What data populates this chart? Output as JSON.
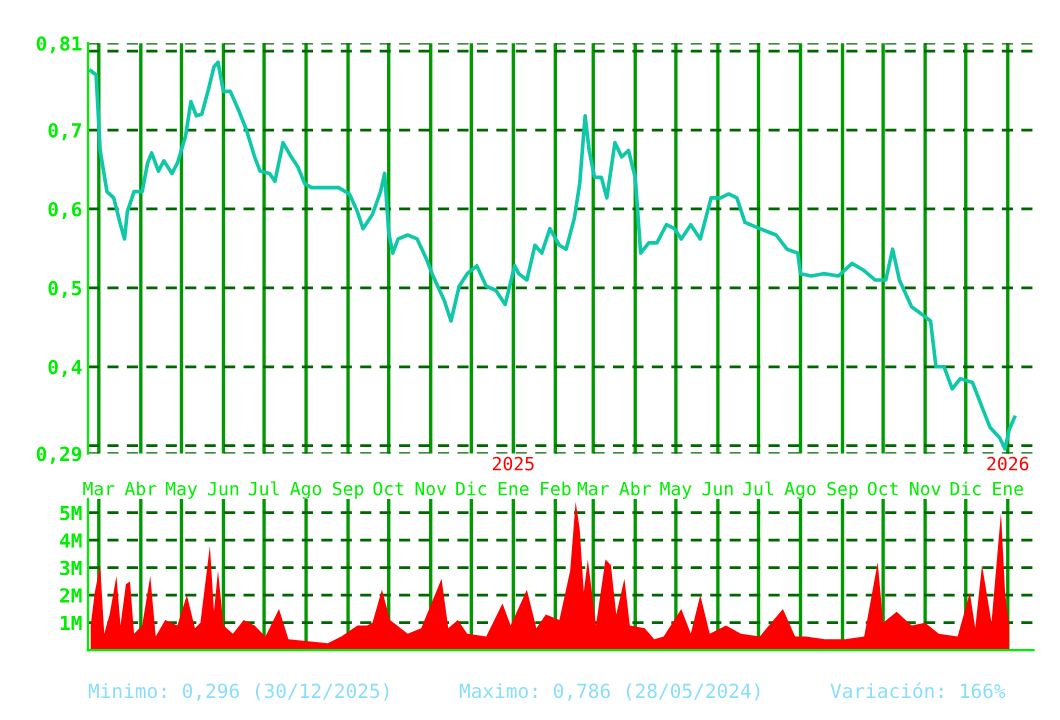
{
  "chart_data": [
    {
      "type": "line",
      "xlim": [
        "2024-02-22",
        "2026-01-20"
      ],
      "ylim": [
        0.29,
        0.81
      ],
      "yticks": [
        {
          "value": 0.29,
          "label": "0,29"
        },
        {
          "value": 0.3,
          "label": null
        },
        {
          "value": 0.4,
          "label": "0,4"
        },
        {
          "value": 0.5,
          "label": "0,5"
        },
        {
          "value": 0.6,
          "label": "0,6"
        },
        {
          "value": 0.7,
          "label": "0,7"
        },
        {
          "value": 0.8,
          "label": null
        },
        {
          "value": 0.81,
          "label": "0,81"
        }
      ],
      "xticks": [
        {
          "value": "2024-03-01",
          "label": "Mar"
        },
        {
          "value": "2024-04-01",
          "label": "Abr"
        },
        {
          "value": "2024-05-01",
          "label": "May"
        },
        {
          "value": "2024-06-01",
          "label": "Jun"
        },
        {
          "value": "2024-07-01",
          "label": "Jul"
        },
        {
          "value": "2024-08-01",
          "label": "Ago"
        },
        {
          "value": "2024-09-01",
          "label": "Sep"
        },
        {
          "value": "2024-10-01",
          "label": "Oct"
        },
        {
          "value": "2024-11-01",
          "label": "Nov"
        },
        {
          "value": "2024-12-01",
          "label": "Dic"
        },
        {
          "value": "2025-01-01",
          "label": "Ene"
        },
        {
          "value": "2025-02-01",
          "label": "Feb"
        },
        {
          "value": "2025-03-01",
          "label": "Mar"
        },
        {
          "value": "2025-04-01",
          "label": "Abr"
        },
        {
          "value": "2025-05-01",
          "label": "May"
        },
        {
          "value": "2025-06-01",
          "label": "Jun"
        },
        {
          "value": "2025-07-01",
          "label": "Jul"
        },
        {
          "value": "2025-08-01",
          "label": "Ago"
        },
        {
          "value": "2025-09-01",
          "label": "Sep"
        },
        {
          "value": "2025-10-01",
          "label": "Oct"
        },
        {
          "value": "2025-11-01",
          "label": "Nov"
        },
        {
          "value": "2025-12-01",
          "label": "Dic"
        },
        {
          "value": "2026-01-01",
          "label": "Ene"
        }
      ],
      "x2lim": [
        "2024-02-22",
        "2026-01-20"
      ],
      "x2ticks": [
        {
          "value": "2025-01-01",
          "label": "2025"
        },
        {
          "value": "2026-01-01",
          "label": "2026"
        }
      ],
      "grid": true,
      "series": [
        {
          "color": "#10c8a8",
          "x": [
            "2024-02-24",
            "2024-02-28",
            "2024-03-02",
            "2024-03-07",
            "2024-03-12",
            "2024-03-17",
            "2024-03-20",
            "2024-03-22",
            "2024-03-27",
            "2024-04-02",
            "2024-04-06",
            "2024-04-09",
            "2024-04-14",
            "2024-04-18",
            "2024-04-24",
            "2024-04-28",
            "2024-05-04",
            "2024-05-08",
            "2024-05-12",
            "2024-05-16",
            "2024-05-21",
            "2024-05-25",
            "2024-05-28",
            "2024-06-01",
            "2024-06-06",
            "2024-06-12",
            "2024-06-18",
            "2024-06-24",
            "2024-06-28",
            "2024-07-05",
            "2024-07-09",
            "2024-07-15",
            "2024-07-21",
            "2024-07-26",
            "2024-07-31",
            "2024-08-05",
            "2024-08-15",
            "2024-08-25",
            "2024-09-02",
            "2024-09-08",
            "2024-09-12",
            "2024-09-19",
            "2024-09-25",
            "2024-09-28",
            "2024-10-01",
            "2024-10-04",
            "2024-10-08",
            "2024-10-15",
            "2024-10-22",
            "2024-10-29",
            "2024-11-02",
            "2024-11-11",
            "2024-11-16",
            "2024-11-22",
            "2024-11-28",
            "2024-12-05",
            "2024-12-12",
            "2024-12-19",
            "2024-12-26",
            "2025-01-02",
            "2025-01-05",
            "2025-01-11",
            "2025-01-17",
            "2025-01-22",
            "2025-01-28",
            "2025-02-04",
            "2025-02-09",
            "2025-02-15",
            "2025-02-19",
            "2025-02-23",
            "2025-02-26",
            "2025-03-02",
            "2025-03-07",
            "2025-03-11",
            "2025-03-17",
            "2025-03-22",
            "2025-03-27",
            "2025-04-01",
            "2025-04-05",
            "2025-04-11",
            "2025-04-17",
            "2025-04-24",
            "2025-04-30",
            "2025-05-05",
            "2025-05-12",
            "2025-05-19",
            "2025-05-27",
            "2025-06-03",
            "2025-06-09",
            "2025-06-15",
            "2025-06-21",
            "2025-07-02",
            "2025-07-14",
            "2025-07-22",
            "2025-07-30",
            "2025-08-01",
            "2025-08-09",
            "2025-08-18",
            "2025-08-29",
            "2025-09-08",
            "2025-09-16",
            "2025-09-25",
            "2025-10-03",
            "2025-10-08",
            "2025-10-13",
            "2025-10-22",
            "2025-10-30",
            "2025-11-05",
            "2025-11-09",
            "2025-11-15",
            "2025-11-21",
            "2025-11-27",
            "2025-12-06",
            "2025-12-13",
            "2025-12-19",
            "2025-12-26",
            "2025-12-30",
            "2026-01-02",
            "2026-01-06"
          ],
          "values": [
            0.775,
            0.77,
            0.674,
            0.622,
            0.614,
            0.58,
            0.562,
            0.596,
            0.622,
            0.622,
            0.658,
            0.671,
            0.648,
            0.661,
            0.645,
            0.658,
            0.692,
            0.736,
            0.718,
            0.72,
            0.752,
            0.78,
            0.786,
            0.749,
            0.749,
            0.726,
            0.7,
            0.666,
            0.648,
            0.645,
            0.635,
            0.684,
            0.666,
            0.653,
            0.632,
            0.627,
            0.627,
            0.627,
            0.619,
            0.596,
            0.575,
            0.593,
            0.622,
            0.645,
            0.57,
            0.544,
            0.562,
            0.567,
            0.562,
            0.536,
            0.518,
            0.484,
            0.458,
            0.502,
            0.518,
            0.528,
            0.502,
            0.497,
            0.479,
            0.528,
            0.518,
            0.51,
            0.554,
            0.544,
            0.575,
            0.554,
            0.549,
            0.588,
            0.632,
            0.718,
            0.674,
            0.64,
            0.64,
            0.614,
            0.684,
            0.666,
            0.674,
            0.64,
            0.544,
            0.557,
            0.557,
            0.58,
            0.575,
            0.562,
            0.58,
            0.562,
            0.614,
            0.614,
            0.619,
            0.614,
            0.583,
            0.575,
            0.567,
            0.549,
            0.544,
            0.518,
            0.515,
            0.518,
            0.515,
            0.531,
            0.523,
            0.51,
            0.51,
            0.549,
            0.51,
            0.476,
            0.466,
            0.458,
            0.4,
            0.4,
            0.372,
            0.385,
            0.38,
            0.349,
            0.323,
            0.31,
            0.296,
            0.32,
            0.336
          ]
        }
      ]
    },
    {
      "type": "area",
      "xlim": [
        "2024-02-22",
        "2026-01-20"
      ],
      "ylim": [
        0,
        5.5
      ],
      "yticks": [
        {
          "value": 1,
          "label": "1M"
        },
        {
          "value": 2,
          "label": "2M"
        },
        {
          "value": 3,
          "label": "3M"
        },
        {
          "value": 4,
          "label": "4M"
        },
        {
          "value": 5,
          "label": "5M"
        }
      ],
      "xticks": [
        {
          "value": "2024-03-01",
          "label": null
        },
        {
          "value": "2024-04-01",
          "label": null
        },
        {
          "value": "2024-05-01",
          "label": null
        },
        {
          "value": "2024-06-01",
          "label": null
        },
        {
          "value": "2024-07-01",
          "label": null
        },
        {
          "value": "2024-08-01",
          "label": null
        },
        {
          "value": "2024-09-01",
          "label": null
        },
        {
          "value": "2024-10-01",
          "label": null
        },
        {
          "value": "2024-11-01",
          "label": null
        },
        {
          "value": "2024-12-01",
          "label": null
        },
        {
          "value": "2025-01-01",
          "label": null
        },
        {
          "value": "2025-02-01",
          "label": null
        },
        {
          "value": "2025-03-01",
          "label": null
        },
        {
          "value": "2025-04-01",
          "label": null
        },
        {
          "value": "2025-05-01",
          "label": null
        },
        {
          "value": "2025-06-01",
          "label": null
        },
        {
          "value": "2025-07-01",
          "label": null
        },
        {
          "value": "2025-08-01",
          "label": null
        },
        {
          "value": "2025-09-01",
          "label": null
        },
        {
          "value": "2025-10-01",
          "label": null
        },
        {
          "value": "2025-11-01",
          "label": null
        },
        {
          "value": "2025-12-01",
          "label": null
        },
        {
          "value": "2026-01-01",
          "label": null
        }
      ],
      "tick_labels": "y",
      "grid": true,
      "annotations": [
        "Minimo: 0,296 (30/12/2025)",
        "Maximo: 0,786 (28/05/2024)",
        "Variación: 166%"
      ],
      "series": [
        {
          "color": "#ff0000",
          "x": [
            "2024-02-24",
            "2024-02-27",
            "2024-03-02",
            "2024-03-05",
            "2024-03-09",
            "2024-03-14",
            "2024-03-17",
            "2024-03-21",
            "2024-03-24",
            "2024-03-27",
            "2024-04-02",
            "2024-04-08",
            "2024-04-12",
            "2024-04-19",
            "2024-04-28",
            "2024-05-05",
            "2024-05-11",
            "2024-05-15",
            "2024-05-22",
            "2024-05-25",
            "2024-05-28",
            "2024-06-01",
            "2024-06-08",
            "2024-06-16",
            "2024-06-24",
            "2024-07-02",
            "2024-07-12",
            "2024-07-19",
            "2024-07-28",
            "2024-08-08",
            "2024-08-17",
            "2024-08-27",
            "2024-09-08",
            "2024-09-15",
            "2024-09-19",
            "2024-09-26",
            "2024-10-02",
            "2024-10-15",
            "2024-10-25",
            "2024-11-09",
            "2024-11-14",
            "2024-11-21",
            "2024-11-28",
            "2024-12-12",
            "2024-12-24",
            "2024-12-30",
            "2025-01-11",
            "2025-01-18",
            "2025-01-25",
            "2025-02-04",
            "2025-02-12",
            "2025-02-16",
            "2025-02-19",
            "2025-02-22",
            "2025-02-25",
            "2025-03-03",
            "2025-03-10",
            "2025-03-14",
            "2025-03-18",
            "2025-03-24",
            "2025-03-28",
            "2025-04-08",
            "2025-04-15",
            "2025-04-22",
            "2025-05-05",
            "2025-05-12",
            "2025-05-19",
            "2025-05-26",
            "2025-06-07",
            "2025-06-18",
            "2025-07-02",
            "2025-07-19",
            "2025-07-28",
            "2025-08-05",
            "2025-08-19",
            "2025-09-03",
            "2025-09-17",
            "2025-09-27",
            "2025-10-01",
            "2025-10-11",
            "2025-10-22",
            "2025-11-01",
            "2025-11-11",
            "2025-11-25",
            "2025-12-04",
            "2025-12-08",
            "2025-12-13",
            "2025-12-20",
            "2025-12-24",
            "2025-12-27",
            "2025-12-30",
            "2026-01-02"
          ],
          "values": [
            0.9,
            2.1,
            3.1,
            0.6,
            1.3,
            2.7,
            0.9,
            2.4,
            2.5,
            0.6,
            0.9,
            2.7,
            0.5,
            1.1,
            0.9,
            2.0,
            0.8,
            1.0,
            3.8,
            1.4,
            2.9,
            0.9,
            0.6,
            1.1,
            0.9,
            0.5,
            1.5,
            0.4,
            0.35,
            0.3,
            0.25,
            0.5,
            0.9,
            0.9,
            1.0,
            2.2,
            1.1,
            0.6,
            0.8,
            2.6,
            0.8,
            1.1,
            0.6,
            0.5,
            1.7,
            0.9,
            2.2,
            0.8,
            1.3,
            1.1,
            2.9,
            5.4,
            4.4,
            2.1,
            3.3,
            0.9,
            3.3,
            3.1,
            1.3,
            2.6,
            0.9,
            0.8,
            0.4,
            0.5,
            1.5,
            0.6,
            2.0,
            0.6,
            0.9,
            0.6,
            0.5,
            1.5,
            0.5,
            0.5,
            0.4,
            0.4,
            0.5,
            3.2,
            1.0,
            1.4,
            0.9,
            1.0,
            0.6,
            0.5,
            2.1,
            0.8,
            3.1,
            1.0,
            3.3,
            5.0,
            2.1,
            0.9
          ]
        }
      ]
    }
  ]
}
